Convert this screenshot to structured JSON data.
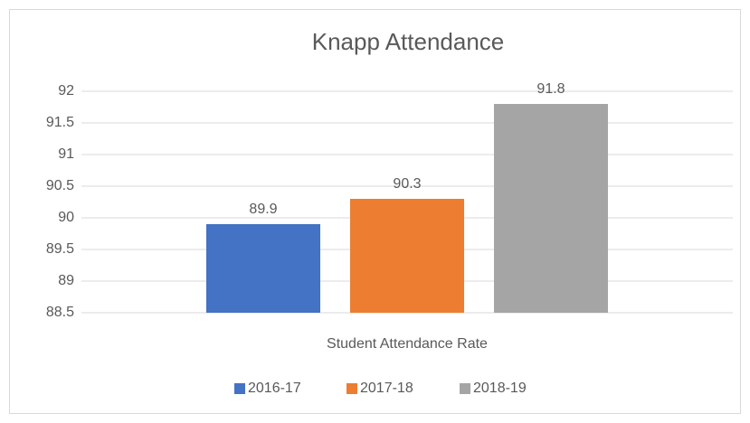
{
  "chart_data": {
    "type": "bar",
    "title": "Knapp Attendance",
    "categories": [
      "Student Attendance Rate"
    ],
    "series": [
      {
        "name": "2016-17",
        "color": "#4472c4",
        "values": [
          89.9
        ]
      },
      {
        "name": "2017-18",
        "color": "#ed7d31",
        "values": [
          90.3
        ]
      },
      {
        "name": "2018-19",
        "color": "#a5a5a5",
        "values": [
          91.8
        ]
      }
    ],
    "ylim": [
      88.5,
      92
    ],
    "yticks": [
      88.5,
      89,
      89.5,
      90,
      90.5,
      91,
      91.5,
      92
    ],
    "grid": true,
    "legend": "bottom"
  }
}
